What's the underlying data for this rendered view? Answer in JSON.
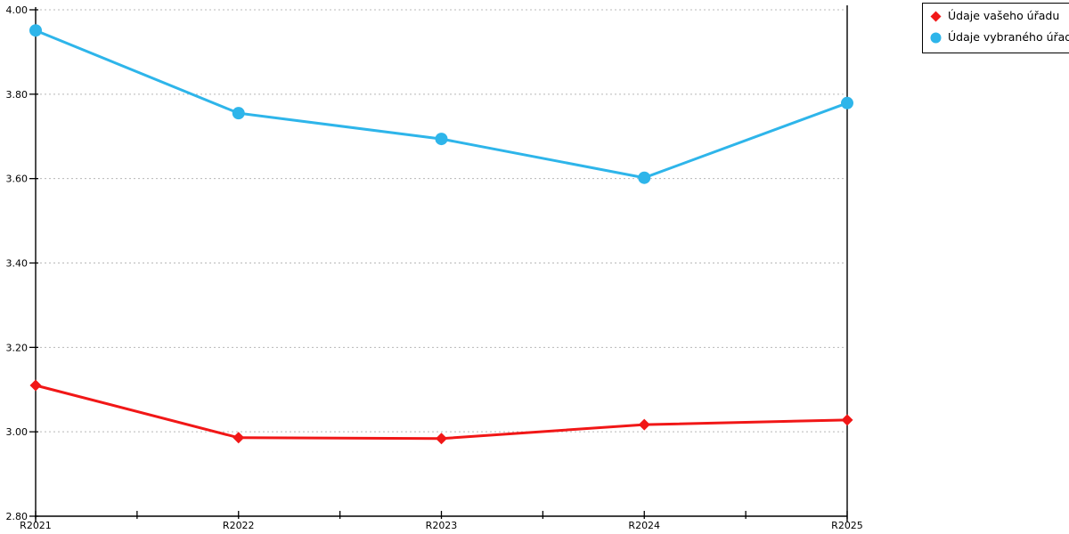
{
  "chart_data": {
    "type": "line",
    "title": "",
    "xlabel": "",
    "ylabel": "",
    "categories": [
      "R2021",
      "R2022",
      "R2023",
      "R2024",
      "R2025"
    ],
    "series": [
      {
        "name": "Údaje vašeho úřadu",
        "color": "#f11717",
        "marker": "diamond",
        "values": [
          3.11,
          2.986,
          2.984,
          3.017,
          3.028
        ]
      },
      {
        "name": "Údaje vybraného úřadu",
        "color": "#2eb5ea",
        "marker": "circle",
        "values": [
          3.951,
          3.755,
          3.694,
          3.602,
          3.779
        ]
      }
    ],
    "ylim": [
      2.8,
      4.0
    ],
    "ytick_step": 0.2,
    "ytick_labels": [
      "2.80",
      "3.00",
      "3.20",
      "3.40",
      "3.60",
      "3.80",
      "4.00"
    ],
    "grid": "horizontal-dotted",
    "grid_color": "#b8b8b8",
    "axis_color": "#000000",
    "legend_position": "top-right"
  },
  "legend": {
    "items": [
      {
        "label": "Údaje vašeho úřadu",
        "marker": "diamond-icon",
        "color": "#f11717"
      },
      {
        "label": "Údaje vybraného úřadu",
        "marker": "circle-icon",
        "color": "#2eb5ea"
      }
    ]
  }
}
